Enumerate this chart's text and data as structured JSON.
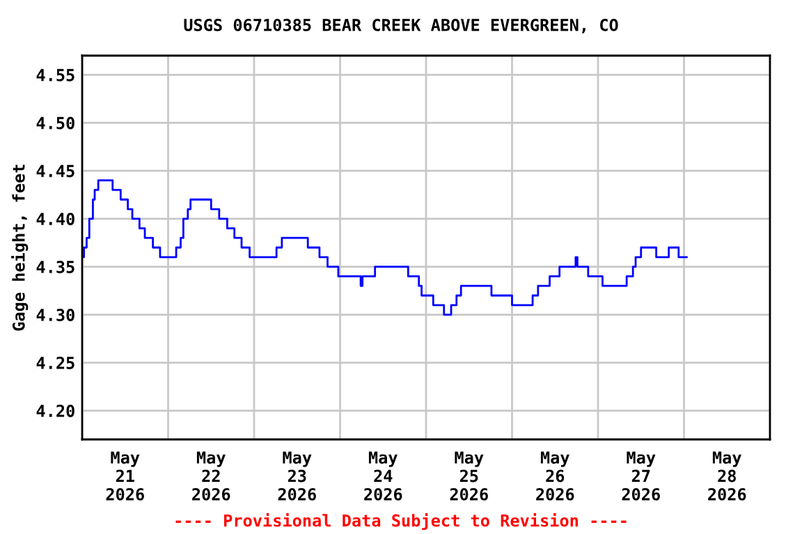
{
  "chart_data": {
    "type": "step",
    "title": "USGS 06710385 BEAR CREEK ABOVE EVERGREEN, CO",
    "ylabel": "Gage height, feet",
    "annotations": [
      "---- Provisional Data Subject to Revision ----"
    ],
    "x": [
      "2026-05-21T00:00",
      "2026-05-21T00:30",
      "2026-05-21T01:15",
      "2026-05-21T02:00",
      "2026-05-21T03:00",
      "2026-05-21T03:30",
      "2026-05-21T04:30",
      "2026-05-21T08:30",
      "2026-05-21T10:45",
      "2026-05-21T12:45",
      "2026-05-21T14:00",
      "2026-05-21T16:00",
      "2026-05-21T17:30",
      "2026-05-21T19:45",
      "2026-05-21T21:45",
      "2026-05-22T02:15",
      "2026-05-22T03:30",
      "2026-05-22T04:15",
      "2026-05-22T05:30",
      "2026-05-22T06:15",
      "2026-05-22T12:00",
      "2026-05-22T14:15",
      "2026-05-22T16:30",
      "2026-05-22T18:30",
      "2026-05-22T20:30",
      "2026-05-22T22:45",
      "2026-05-23T06:15",
      "2026-05-23T07:45",
      "2026-05-23T15:00",
      "2026-05-23T18:15",
      "2026-05-23T20:30",
      "2026-05-23T23:30",
      "2026-05-24T05:45",
      "2026-05-24T06:15",
      "2026-05-24T09:45",
      "2026-05-24T19:00",
      "2026-05-24T22:00",
      "2026-05-24T22:45",
      "2026-05-25T02:00",
      "2026-05-25T05:00",
      "2026-05-25T07:00",
      "2026-05-25T08:30",
      "2026-05-25T09:45",
      "2026-05-25T18:15",
      "2026-05-26T00:00",
      "2026-05-26T05:45",
      "2026-05-26T07:15",
      "2026-05-26T10:30",
      "2026-05-26T13:15",
      "2026-05-26T17:45",
      "2026-05-26T18:15",
      "2026-05-26T21:15",
      "2026-05-27T01:15",
      "2026-05-27T08:00",
      "2026-05-27T09:45",
      "2026-05-27T10:30",
      "2026-05-27T12:00",
      "2026-05-27T16:15",
      "2026-05-27T19:45",
      "2026-05-27T22:30",
      "2026-05-28T00:45"
    ],
    "series": [
      {
        "color": "#0000ff",
        "values": [
          4.36,
          4.37,
          4.38,
          4.4,
          4.42,
          4.43,
          4.44,
          4.43,
          4.42,
          4.41,
          4.4,
          4.39,
          4.38,
          4.37,
          4.36,
          4.37,
          4.38,
          4.4,
          4.41,
          4.42,
          4.41,
          4.4,
          4.39,
          4.38,
          4.37,
          4.36,
          4.37,
          4.38,
          4.37,
          4.36,
          4.35,
          4.34,
          4.33,
          4.34,
          4.35,
          4.34,
          4.33,
          4.32,
          4.31,
          4.3,
          4.31,
          4.32,
          4.33,
          4.32,
          4.31,
          4.32,
          4.33,
          4.34,
          4.35,
          4.36,
          4.35,
          4.34,
          4.33,
          4.34,
          4.35,
          4.36,
          4.37,
          4.36,
          4.37,
          4.36,
          4.36
        ]
      }
    ],
    "xlim": [
      "2026-05-21T00:00",
      "2026-05-29T00:00"
    ],
    "xticks": [
      {
        "value": "2026-05-21T00:00",
        "label": null
      },
      {
        "value": "2026-05-21T12:00",
        "label": "May\n21\n2026"
      },
      {
        "value": "2026-05-22T00:00",
        "label": null
      },
      {
        "value": "2026-05-22T12:00",
        "label": "May\n22\n2026"
      },
      {
        "value": "2026-05-23T00:00",
        "label": null
      },
      {
        "value": "2026-05-23T12:00",
        "label": "May\n23\n2026"
      },
      {
        "value": "2026-05-24T00:00",
        "label": null
      },
      {
        "value": "2026-05-24T12:00",
        "label": "May\n24\n2026"
      },
      {
        "value": "2026-05-25T00:00",
        "label": null
      },
      {
        "value": "2026-05-25T12:00",
        "label": "May\n25\n2026"
      },
      {
        "value": "2026-05-26T00:00",
        "label": null
      },
      {
        "value": "2026-05-26T12:00",
        "label": "May\n26\n2026"
      },
      {
        "value": "2026-05-27T00:00",
        "label": null
      },
      {
        "value": "2026-05-27T12:00",
        "label": "May\n27\n2026"
      },
      {
        "value": "2026-05-28T00:00",
        "label": null
      },
      {
        "value": "2026-05-28T12:00",
        "label": "May\n28\n2026"
      },
      {
        "value": "2026-05-29T00:00",
        "label": null
      }
    ],
    "ylim": [
      4.17,
      4.57
    ],
    "yticks": [
      {
        "value": 4.2,
        "label": "4.20"
      },
      {
        "value": 4.25,
        "label": "4.25"
      },
      {
        "value": 4.3,
        "label": "4.30"
      },
      {
        "value": 4.35,
        "label": "4.35"
      },
      {
        "value": 4.4,
        "label": "4.40"
      },
      {
        "value": 4.45,
        "label": "4.45"
      },
      {
        "value": 4.5,
        "label": "4.50"
      },
      {
        "value": 4.55,
        "label": "4.55"
      }
    ],
    "grid": true,
    "line_style": "solid"
  }
}
